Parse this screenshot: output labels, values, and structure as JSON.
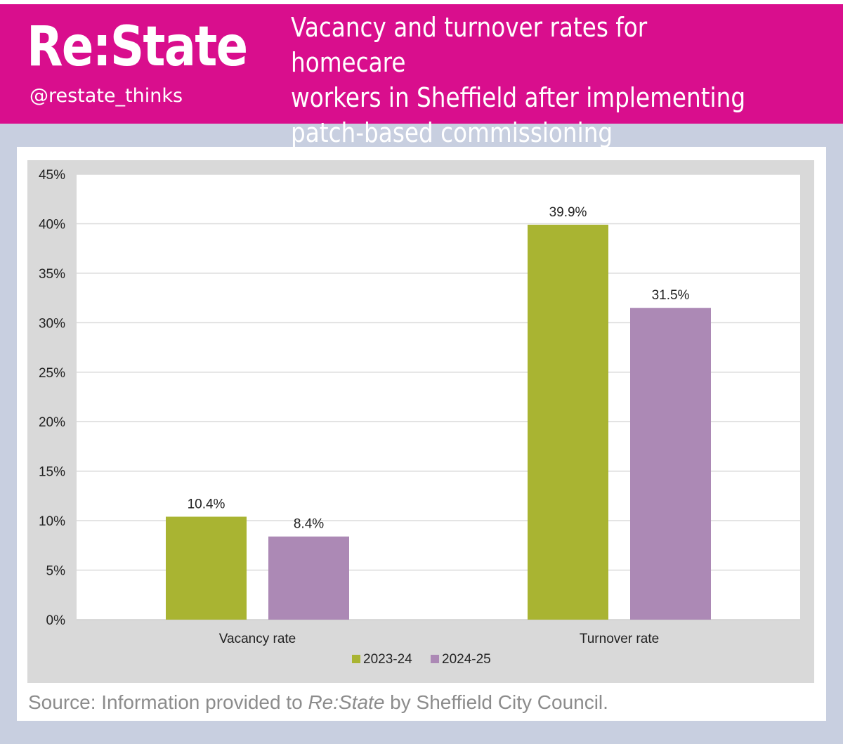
{
  "header": {
    "brand": "Re:State",
    "handle": "@restate_thinks",
    "title": "Vacancy and turnover rates for homecare\nworkers in Sheffield after implementing\npatch-based commissioning"
  },
  "source": {
    "prefix": "Source: Information provided to ",
    "emphasis": "Re:State",
    "suffix": " by Sheffield City Council."
  },
  "colors": {
    "header_bg": "#d90e8d",
    "page_bg": "#c8cfe0",
    "chart_bg": "#d9d9d9",
    "plot_bg": "#ffffff",
    "series_2023_24": "#a9b432",
    "series_2024_25": "#ac89b5"
  },
  "chart_data": {
    "type": "bar",
    "title": "",
    "xlabel": "",
    "ylabel": "",
    "categories": [
      "Vacancy rate",
      "Turnover rate"
    ],
    "series": [
      {
        "name": "2023-24",
        "values": [
          10.4,
          39.9
        ],
        "labels": [
          "10.4%",
          "39.9%"
        ],
        "color": "#a9b432"
      },
      {
        "name": "2024-25",
        "values": [
          8.4,
          31.5
        ],
        "labels": [
          "8.4%",
          "31.5%"
        ],
        "color": "#ac89b5"
      }
    ],
    "ylim": [
      0,
      45
    ],
    "yticks": [
      0,
      5,
      10,
      15,
      20,
      25,
      30,
      35,
      40,
      45
    ],
    "ytick_labels": [
      "0%",
      "5%",
      "10%",
      "15%",
      "20%",
      "25%",
      "30%",
      "35%",
      "40%",
      "45%"
    ],
    "grid": true,
    "legend": "bottom-center"
  }
}
